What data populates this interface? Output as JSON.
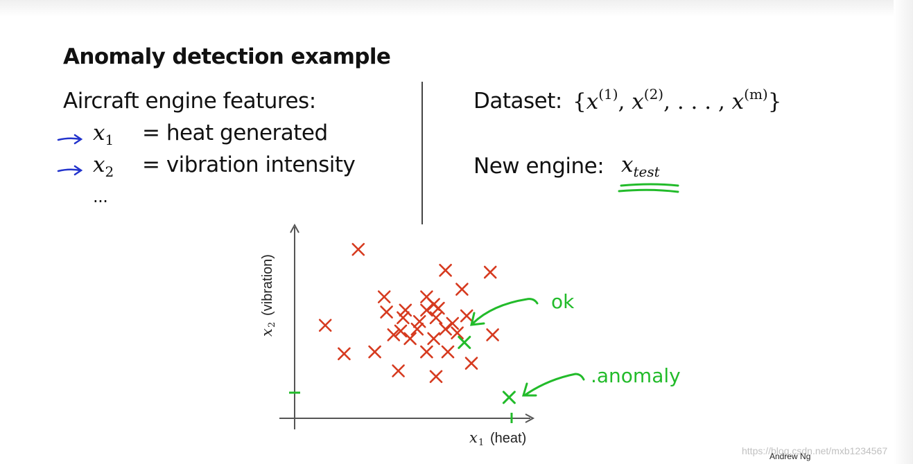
{
  "slide": {
    "title": "Anomaly detection example",
    "features_heading": "Aircraft engine features:",
    "features": [
      {
        "var": "x",
        "sub": "1",
        "desc": "= heat generated"
      },
      {
        "var": "x",
        "sub": "2",
        "desc": "= vibration intensity"
      }
    ],
    "ellipsis": "...",
    "dataset_label": "Dataset:",
    "dataset_formula": {
      "open": "{",
      "x": "x",
      "s1": "(1)",
      "s2": "(2)",
      "sm": "(m)",
      "dots": ", . . . ,",
      "close": "}",
      "comma": ","
    },
    "new_engine_label": "New engine:",
    "new_engine_var": {
      "x": "x",
      "sub": "test"
    },
    "author": "Andrew Ng",
    "watermark": "https://blog.csdn.net/mxb1234567"
  },
  "plot": {
    "xlabel_var": "x",
    "xlabel_sub": "1",
    "xlabel_text": "(heat)",
    "ylabel_var": "x",
    "ylabel_sub": "2",
    "ylabel_text": "(vibration)",
    "annotations": {
      "ok": "ok",
      "anomaly": ".anomaly"
    }
  },
  "colors": {
    "normal": "#d63a1f",
    "annotation": "#22bb2a",
    "arrow": "#2233cc",
    "axis": "#555555"
  },
  "chart_data": {
    "type": "scatter",
    "xlabel": "x1 (heat)",
    "ylabel": "x2 (vibration)",
    "xlim": [
      0,
      100
    ],
    "ylim": [
      0,
      100
    ],
    "series": [
      {
        "name": "",
        "color": "#d63a1f",
        "points": [
          [
            27,
            89
          ],
          [
            64,
            78
          ],
          [
            83,
            77
          ],
          [
            38,
            64
          ],
          [
            56,
            64
          ],
          [
            71,
            68
          ],
          [
            59,
            60
          ],
          [
            13,
            49
          ],
          [
            39,
            56
          ],
          [
            47,
            57
          ],
          [
            56,
            57
          ],
          [
            61,
            58
          ],
          [
            46,
            53
          ],
          [
            60,
            53
          ],
          [
            53,
            51
          ],
          [
            67,
            50
          ],
          [
            73,
            54
          ],
          [
            52,
            47
          ],
          [
            64,
            47
          ],
          [
            45,
            46
          ],
          [
            42,
            44
          ],
          [
            69,
            45
          ],
          [
            49,
            42
          ],
          [
            59,
            42
          ],
          [
            84,
            44
          ],
          [
            21,
            34
          ],
          [
            34,
            35
          ],
          [
            56,
            35
          ],
          [
            44,
            25
          ],
          [
            60,
            22
          ],
          [
            75,
            29
          ],
          [
            65,
            35
          ]
        ]
      },
      {
        "name": "",
        "color": "#22bb2a",
        "points": [
          [
            72,
            40
          ]
        ],
        "label": "ok"
      },
      {
        "name": "",
        "color": "#22bb2a",
        "points": [
          [
            91,
            11
          ]
        ],
        "label": "anomaly"
      }
    ]
  }
}
